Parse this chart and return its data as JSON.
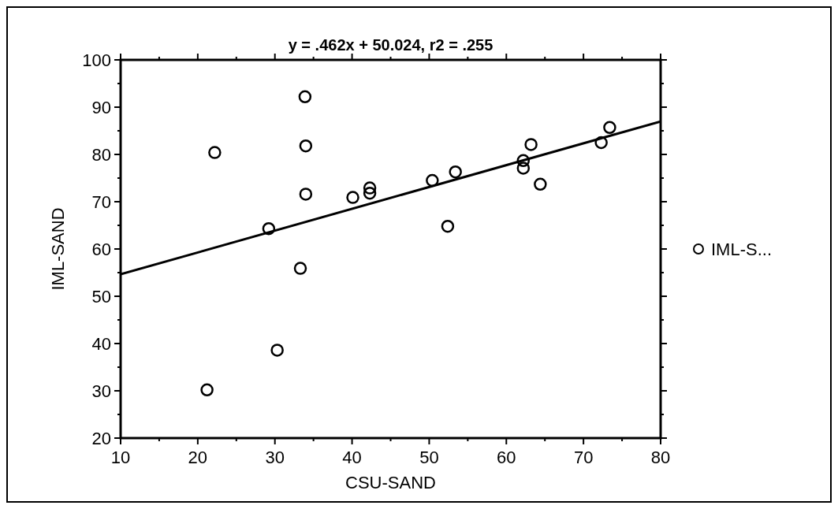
{
  "chart_data": {
    "type": "scatter",
    "title": "y = .462x + 50.024, r2 = .255",
    "xlabel": "CSU-SAND",
    "ylabel": "IML-SAND",
    "xlim": [
      10,
      80
    ],
    "ylim": [
      20,
      100
    ],
    "xticks": [
      10,
      {
        "value": 15,
        "label": null
      },
      20,
      {
        "value": 25,
        "label": null
      },
      30,
      {
        "value": 35,
        "label": null
      },
      40,
      {
        "value": 45,
        "label": null
      },
      50,
      {
        "value": 55,
        "label": null
      },
      60,
      {
        "value": 65,
        "label": null
      },
      70,
      {
        "value": 75,
        "label": null
      },
      80
    ],
    "yticks": [
      20,
      {
        "value": 25,
        "label": null
      },
      30,
      {
        "value": 35,
        "label": null
      },
      40,
      {
        "value": 45,
        "label": null
      },
      50,
      {
        "value": 55,
        "label": null
      },
      60,
      {
        "value": 65,
        "label": null
      },
      70,
      {
        "value": 75,
        "label": null
      },
      80,
      {
        "value": 85,
        "label": null
      },
      90,
      {
        "value": 95,
        "label": null
      },
      100
    ],
    "series": [
      {
        "name": "IML-S...",
        "color": "#000000",
        "marker": "circle",
        "x": [
          33.9,
          34.0,
          22.2,
          34.0,
          40.1,
          42.3,
          42.3,
          29.2,
          33.3,
          30.3,
          21.2,
          50.4,
          53.4,
          52.4,
          62.2,
          62.2,
          63.2,
          64.4,
          72.3,
          73.4
        ],
        "values": [
          92.2,
          81.8,
          80.4,
          71.6,
          70.9,
          72.9,
          71.8,
          64.3,
          55.9,
          38.6,
          30.2,
          74.5,
          76.3,
          64.8,
          78.7,
          77.1,
          82.1,
          73.7,
          82.5,
          85.7
        ]
      },
      {
        "type": "line",
        "color": "#000000",
        "marker": "none",
        "x": [
          10,
          80
        ],
        "values": [
          54.64,
          86.98
        ]
      }
    ],
    "legend": "right",
    "grid": false
  }
}
